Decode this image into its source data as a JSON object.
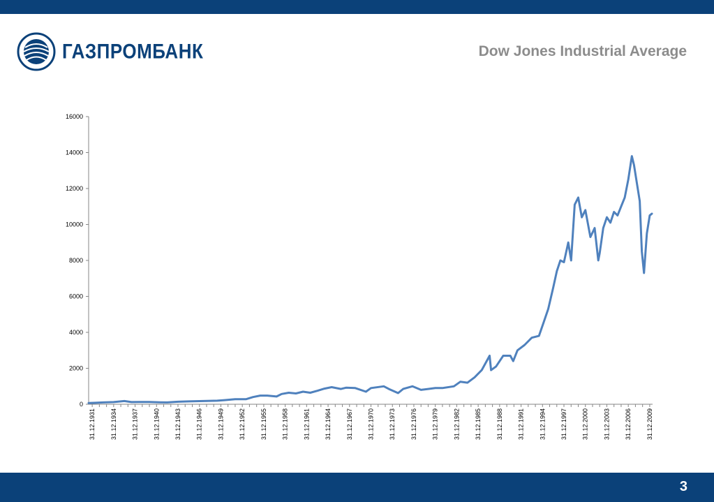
{
  "header": {
    "logo_text": "ГАЗПРОМБАНК",
    "title": "Dow Jones Industrial Average"
  },
  "footer": {
    "page_number": "3"
  },
  "colors": {
    "bar": "#0b4179",
    "series": "#4f81bd",
    "title": "#8c8c8c",
    "axis": "#868686"
  },
  "chart_data": {
    "type": "line",
    "title": "",
    "xlabel": "",
    "ylabel": "",
    "ylim": [
      0,
      16000
    ],
    "yticks": [
      0,
      2000,
      4000,
      6000,
      8000,
      10000,
      12000,
      14000,
      16000
    ],
    "xticks": [
      "31.12.1931",
      "31.12.1934",
      "31.12.1937",
      "31.12.1940",
      "31.12.1943",
      "31.12.1946",
      "31.12.1949",
      "31.12.1952",
      "31.12.1955",
      "31.12.1958",
      "31.12.1961",
      "31.12.1964",
      "31.12.1967",
      "31.12.1970",
      "31.12.1973",
      "31.12.1976",
      "31.12.1979",
      "31.12.1982",
      "31.12.1985",
      "31.12.1988",
      "31.12.1991",
      "31.12.1994",
      "31.12.1997",
      "31.12.2000",
      "31.12.2003",
      "31.12.2006",
      "31.12.2009"
    ],
    "xlim": [
      1931.5,
      2010.4
    ],
    "grid": false,
    "legend": "none",
    "series": [
      {
        "x": [
          1931.5,
          1932.5,
          1933.5,
          1935.0,
          1936.5,
          1937.5,
          1938.5,
          1940.0,
          1941.5,
          1942.5,
          1944.0,
          1945.5,
          1946.5,
          1947.5,
          1949.5,
          1950.5,
          1952.0,
          1953.5,
          1954.5,
          1955.5,
          1956.5,
          1957.8,
          1958.5,
          1959.5,
          1960.5,
          1961.5,
          1962.5,
          1963.5,
          1964.5,
          1965.5,
          1966.8,
          1967.5,
          1968.8,
          1970.3,
          1971.0,
          1972.8,
          1973.5,
          1974.8,
          1975.5,
          1976.8,
          1978.0,
          1979.0,
          1980.0,
          1981.0,
          1982.6,
          1983.5,
          1984.5,
          1985.5,
          1986.5,
          1987.6,
          1987.8,
          1988.5,
          1989.5,
          1990.5,
          1990.9,
          1991.5,
          1992.5,
          1993.5,
          1994.5,
          1995.2,
          1995.8,
          1996.5,
          1997.0,
          1997.5,
          1998.0,
          1998.6,
          1999.0,
          1999.5,
          2000.0,
          2000.5,
          2001.0,
          2001.7,
          2002.3,
          2002.8,
          2003.0,
          2003.5,
          2004.0,
          2004.5,
          2005.0,
          2005.5,
          2006.0,
          2006.5,
          2007.0,
          2007.5,
          2007.8,
          2008.2,
          2008.6,
          2008.9,
          2009.2,
          2009.6,
          2010.0,
          2010.3
        ],
        "values": [
          70,
          80,
          100,
          120,
          180,
          120,
          130,
          130,
          110,
          100,
          140,
          160,
          170,
          180,
          200,
          230,
          280,
          280,
          400,
          480,
          480,
          430,
          570,
          640,
          600,
          700,
          640,
          750,
          870,
          950,
          850,
          920,
          900,
          700,
          900,
          1000,
          850,
          620,
          850,
          1000,
          800,
          850,
          900,
          900,
          1000,
          1250,
          1200,
          1500,
          1900,
          2700,
          1900,
          2100,
          2700,
          2700,
          2400,
          3000,
          3300,
          3700,
          3800,
          4600,
          5300,
          6500,
          7400,
          8000,
          7900,
          9000,
          8000,
          11100,
          11500,
          10400,
          10800,
          9300,
          9800,
          8000,
          8400,
          9800,
          10400,
          10100,
          10700,
          10500,
          11000,
          11500,
          12500,
          13800,
          13300,
          12300,
          11300,
          8500,
          7300,
          9500,
          10500,
          10600
        ]
      }
    ]
  }
}
